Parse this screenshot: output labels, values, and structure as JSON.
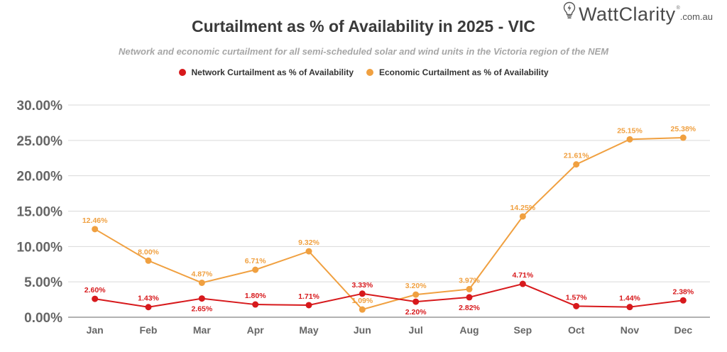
{
  "logo": {
    "brand": "WattClarity",
    "registered": "®",
    "tld": ".com.au",
    "icon": "lightbulb-bolt-icon"
  },
  "colors": {
    "network": "#d7191c",
    "economic": "#f0a040",
    "grid": "#d9d9d9",
    "axis": "#999999",
    "tick_text": "#666666"
  },
  "chart_data": {
    "type": "line",
    "title": "Curtailment as % of Availability in 2025 - VIC",
    "subtitle": "Network and economic curtailment for all semi-scheduled solar and wind units in the Victoria region of the NEM",
    "xlabel": "",
    "ylabel": "",
    "categories": [
      "Jan",
      "Feb",
      "Mar",
      "Apr",
      "May",
      "Jun",
      "Jul",
      "Aug",
      "Sep",
      "Oct",
      "Nov",
      "Dec"
    ],
    "ylim": [
      0,
      30
    ],
    "yticks": [
      0,
      5,
      10,
      15,
      20,
      25,
      30
    ],
    "ytick_labels": [
      "0.00%",
      "5.00%",
      "10.00%",
      "15.00%",
      "20.00%",
      "25.00%",
      "30.00%"
    ],
    "grid": true,
    "legend_position": "top-center",
    "series": [
      {
        "name": "Network Curtailment as % of Availability",
        "color": "#d7191c",
        "values": [
          2.6,
          1.43,
          2.65,
          1.8,
          1.71,
          3.33,
          2.2,
          2.82,
          4.71,
          1.57,
          1.44,
          2.38
        ],
        "labels": [
          "2.60%",
          "1.43%",
          "2.65%",
          "1.80%",
          "1.71%",
          "3.33%",
          "2.20%",
          "2.82%",
          "4.71%",
          "1.57%",
          "1.44%",
          "2.38%"
        ],
        "label_positions": [
          "above",
          "above",
          "below",
          "above",
          "above",
          "above",
          "below",
          "below",
          "above",
          "above",
          "above",
          "above"
        ]
      },
      {
        "name": "Economic Curtailment as % of Availability",
        "color": "#f0a040",
        "values": [
          12.46,
          8.0,
          4.87,
          6.71,
          9.32,
          1.09,
          3.2,
          3.97,
          14.25,
          21.61,
          25.15,
          25.38
        ],
        "labels": [
          "12.46%",
          "8.00%",
          "4.87%",
          "6.71%",
          "9.32%",
          "1.09%",
          "3.20%",
          "3.97%",
          "14.25%",
          "21.61%",
          "25.15%",
          "25.38%"
        ],
        "label_positions": [
          "above",
          "above",
          "above",
          "above",
          "above",
          "above",
          "above",
          "above",
          "above",
          "above",
          "above",
          "above"
        ]
      }
    ]
  }
}
